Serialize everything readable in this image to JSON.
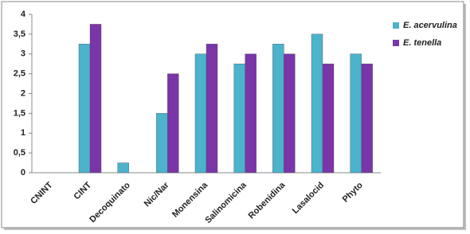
{
  "chart_data": {
    "type": "bar",
    "categories": [
      "CNINT",
      "CINT",
      "Decoquinato",
      "Nic/Nar",
      "Monensina",
      "Salinomicina",
      "Robenidina",
      "Lasalocid",
      "Phyto"
    ],
    "series": [
      {
        "name": "E. acervulina",
        "color": "#4bb3cc",
        "values": [
          0,
          3.25,
          0.25,
          1.5,
          3,
          2.75,
          3.25,
          3.5,
          3
        ]
      },
      {
        "name": "E. tenella",
        "color": "#7a35a8",
        "values": [
          0,
          3.75,
          0,
          2.5,
          3.25,
          3,
          3,
          2.75,
          2.75
        ]
      }
    ],
    "ylim": [
      0,
      4
    ],
    "yticks": [
      0,
      {
        "value": 0.5,
        "label": "0,5"
      },
      1,
      {
        "value": 1.5,
        "label": "1,5"
      },
      2,
      {
        "value": 2.5,
        "label": "2,5"
      },
      3,
      {
        "value": 3.5,
        "label": "3,5"
      },
      4
    ],
    "grid": false,
    "legend": "right"
  }
}
